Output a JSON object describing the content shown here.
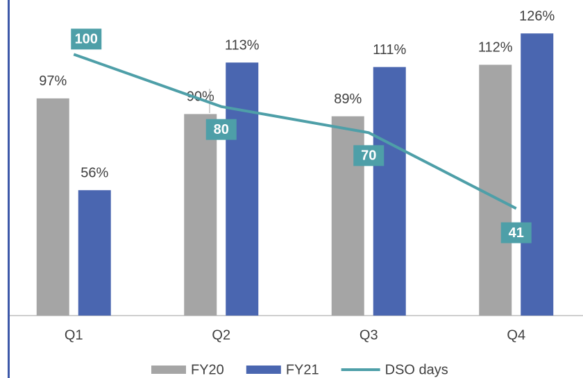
{
  "chart_data": {
    "type": "bar-line",
    "categories": [
      "Q1",
      "Q2",
      "Q3",
      "Q4"
    ],
    "ylim": [
      0,
      140
    ],
    "y2lim": [
      0,
      120
    ],
    "series": [
      {
        "name": "FY20",
        "type": "bar",
        "color": "#a5a5a5",
        "values": [
          97,
          90,
          89,
          112
        ],
        "value_labels": [
          "97%",
          "90%",
          "89%",
          "112%"
        ]
      },
      {
        "name": "FY21",
        "type": "bar",
        "color": "#4a66b0",
        "values": [
          56,
          113,
          111,
          126
        ],
        "value_labels": [
          "56%",
          "113%",
          "111%",
          "126%"
        ]
      },
      {
        "name": "DSO days",
        "type": "line",
        "axis": "y2",
        "color": "#4e9fa8",
        "values": [
          100,
          80,
          70,
          41
        ]
      }
    ],
    "legend": "bottom"
  }
}
